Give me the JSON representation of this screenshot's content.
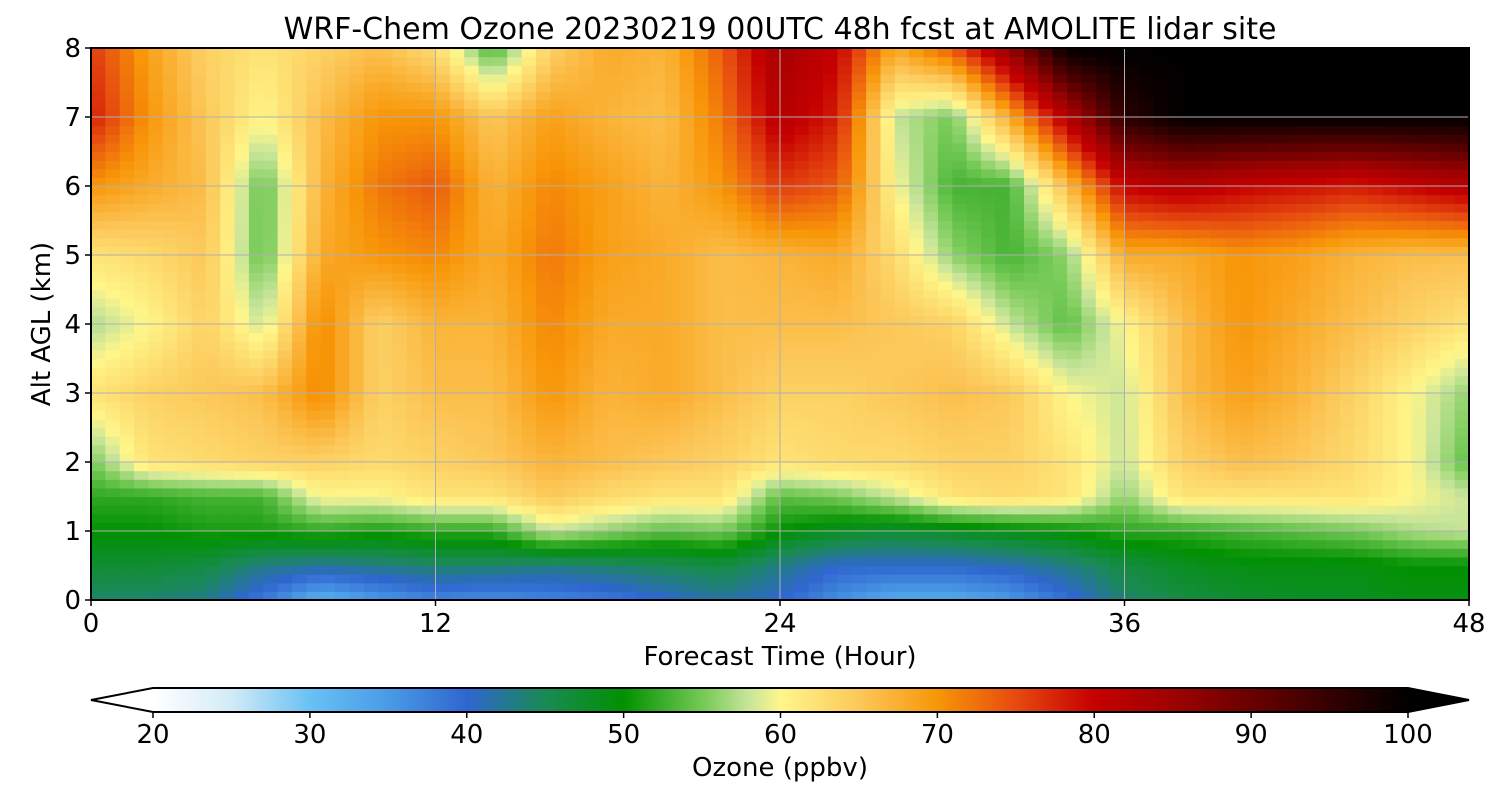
{
  "chart_data": {
    "type": "heatmap",
    "title": "WRF-Chem Ozone  20230219 00UTC 48h fcst at AMOLITE lidar site",
    "xlabel": "Forecast Time (Hour)",
    "ylabel": "Alt AGL (km)",
    "x_ticks": [
      "0",
      "12",
      "24",
      "36",
      "48"
    ],
    "y_ticks": [
      "0",
      "1",
      "2",
      "3",
      "4",
      "5",
      "6",
      "7",
      "8"
    ],
    "xlim": [
      0,
      48
    ],
    "ylim": [
      0,
      8
    ],
    "grid": true,
    "x": [
      0,
      2,
      4,
      6,
      8,
      10,
      12,
      14,
      16,
      18,
      20,
      22,
      24,
      26,
      28,
      30,
      32,
      34,
      36,
      38,
      40,
      42,
      44,
      46,
      48
    ],
    "y": [
      0,
      0.5,
      1,
      1.5,
      2,
      3,
      4,
      5,
      6,
      7,
      8
    ],
    "z": [
      [
        44,
        44,
        43,
        38,
        32,
        35,
        37,
        36,
        37,
        38,
        40,
        42,
        40,
        36,
        33,
        33,
        35,
        39,
        44,
        46,
        47,
        48,
        48,
        49,
        49
      ],
      [
        47,
        47,
        46,
        43,
        42,
        43,
        44,
        44,
        43,
        44,
        45,
        46,
        43,
        40,
        40,
        40,
        41,
        43,
        46,
        48,
        49,
        49,
        49,
        50,
        50
      ],
      [
        50,
        50,
        51,
        51,
        52,
        51,
        52,
        52,
        58,
        56,
        54,
        55,
        50,
        48,
        47,
        48,
        49,
        50,
        52,
        52,
        53,
        54,
        55,
        57,
        58
      ],
      [
        52,
        52,
        53,
        53,
        60,
        60,
        62,
        62,
        65,
        63,
        62,
        62,
        54,
        55,
        58,
        62,
        63,
        62,
        56,
        62,
        62,
        62,
        62,
        60,
        58
      ],
      [
        55,
        62,
        63,
        64,
        64,
        63,
        64,
        65,
        67,
        66,
        65,
        64,
        62,
        63,
        63,
        64,
        64,
        62,
        58,
        64,
        66,
        65,
        63,
        60,
        54
      ],
      [
        62,
        64,
        65,
        66,
        71,
        64,
        66,
        66,
        70,
        67,
        68,
        66,
        64,
        64,
        65,
        66,
        65,
        60,
        58,
        66,
        69,
        67,
        64,
        60,
        56
      ],
      [
        57,
        60,
        64,
        58,
        71,
        64,
        67,
        67,
        71,
        68,
        68,
        66,
        66,
        66,
        65,
        64,
        58,
        54,
        60,
        66,
        70,
        68,
        66,
        64,
        62
      ],
      [
        62,
        63,
        65,
        54,
        68,
        70,
        71,
        68,
        72,
        69,
        68,
        66,
        67,
        68,
        63,
        56,
        53,
        56,
        68,
        68,
        70,
        69,
        67,
        66,
        66
      ],
      [
        70,
        68,
        66,
        54,
        67,
        72,
        74,
        67,
        71,
        69,
        67,
        70,
        76,
        74,
        60,
        53,
        53,
        66,
        80,
        82,
        80,
        79,
        78,
        80,
        82
      ],
      [
        78,
        70,
        65,
        60,
        66,
        70,
        70,
        65,
        69,
        67,
        66,
        72,
        82,
        78,
        58,
        55,
        68,
        82,
        96,
        100,
        100,
        100,
        100,
        100,
        100
      ],
      [
        76,
        69,
        64,
        62,
        64,
        66,
        63,
        53,
        64,
        68,
        67,
        74,
        84,
        80,
        68,
        74,
        86,
        100,
        100,
        100,
        100,
        100,
        100,
        100,
        100
      ]
    ],
    "colorbar": {
      "label": "Ozone  (ppbv)",
      "ticks": [
        "20",
        "30",
        "40",
        "50",
        "60",
        "70",
        "80",
        "90",
        "100"
      ],
      "range": [
        20,
        100
      ],
      "extend": "both",
      "color_stops": [
        {
          "value": 20,
          "color": "#ffffff"
        },
        {
          "value": 25,
          "color": "#d2ebf7"
        },
        {
          "value": 30,
          "color": "#69c1f4"
        },
        {
          "value": 35,
          "color": "#4a9ae6"
        },
        {
          "value": 40,
          "color": "#2f66cf"
        },
        {
          "value": 45,
          "color": "#1a8a55"
        },
        {
          "value": 50,
          "color": "#019101"
        },
        {
          "value": 55,
          "color": "#74c955"
        },
        {
          "value": 58,
          "color": "#c8e59a"
        },
        {
          "value": 60,
          "color": "#fff68a"
        },
        {
          "value": 65,
          "color": "#fcc85a"
        },
        {
          "value": 70,
          "color": "#f89608"
        },
        {
          "value": 75,
          "color": "#e64a10"
        },
        {
          "value": 80,
          "color": "#c50000"
        },
        {
          "value": 85,
          "color": "#9e0202"
        },
        {
          "value": 90,
          "color": "#6a0000"
        },
        {
          "value": 100,
          "color": "#000000"
        }
      ]
    }
  }
}
